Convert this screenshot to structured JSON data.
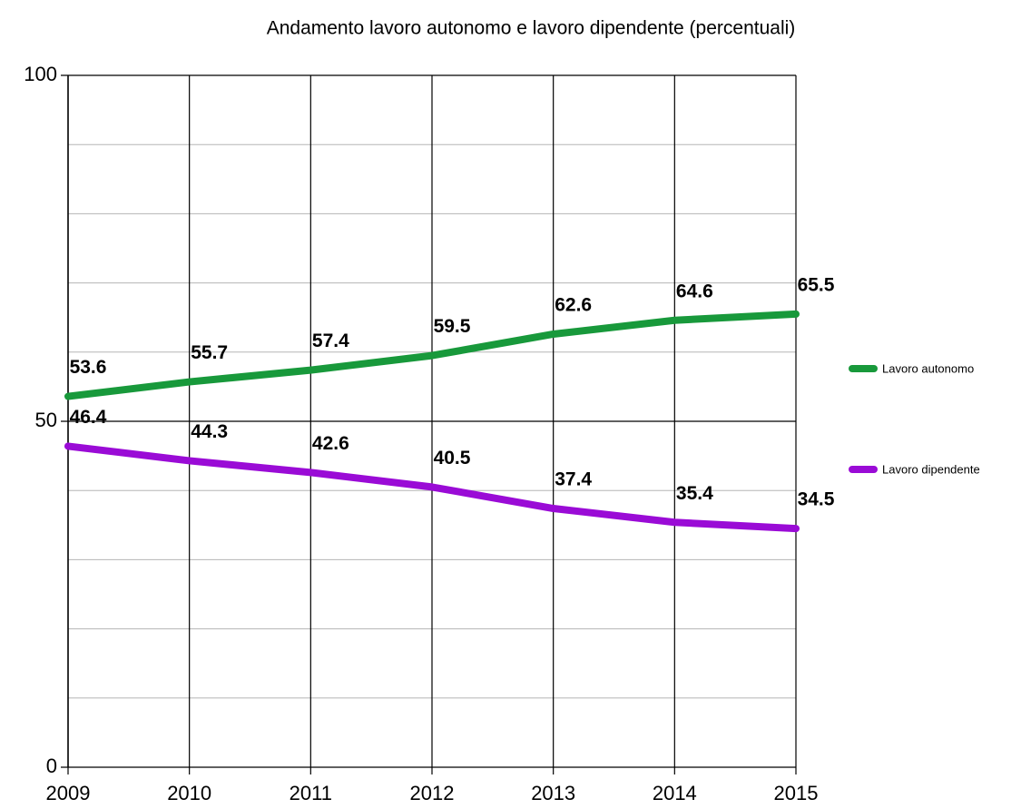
{
  "chart_data": {
    "type": "line",
    "title": "Andamento lavoro autonomo e lavoro dipendente (percentuali)",
    "categories": [
      "2009",
      "2010",
      "2011",
      "2012",
      "2013",
      "2014",
      "2015"
    ],
    "series": [
      {
        "name": "Lavoro autonomo",
        "color": "#18993b",
        "values": [
          53.6,
          55.7,
          57.4,
          59.5,
          62.6,
          64.6,
          65.5
        ]
      },
      {
        "name": "Lavoro dipendente",
        "color": "#9a0bd6",
        "values": [
          46.4,
          44.3,
          42.6,
          40.5,
          37.4,
          35.4,
          34.5
        ]
      }
    ],
    "ylim": [
      0,
      100
    ],
    "yticks": [
      0,
      50,
      100
    ],
    "minor_grid": [
      10,
      20,
      30,
      40,
      60,
      70,
      80,
      90
    ],
    "grid": true,
    "legend": "right"
  }
}
